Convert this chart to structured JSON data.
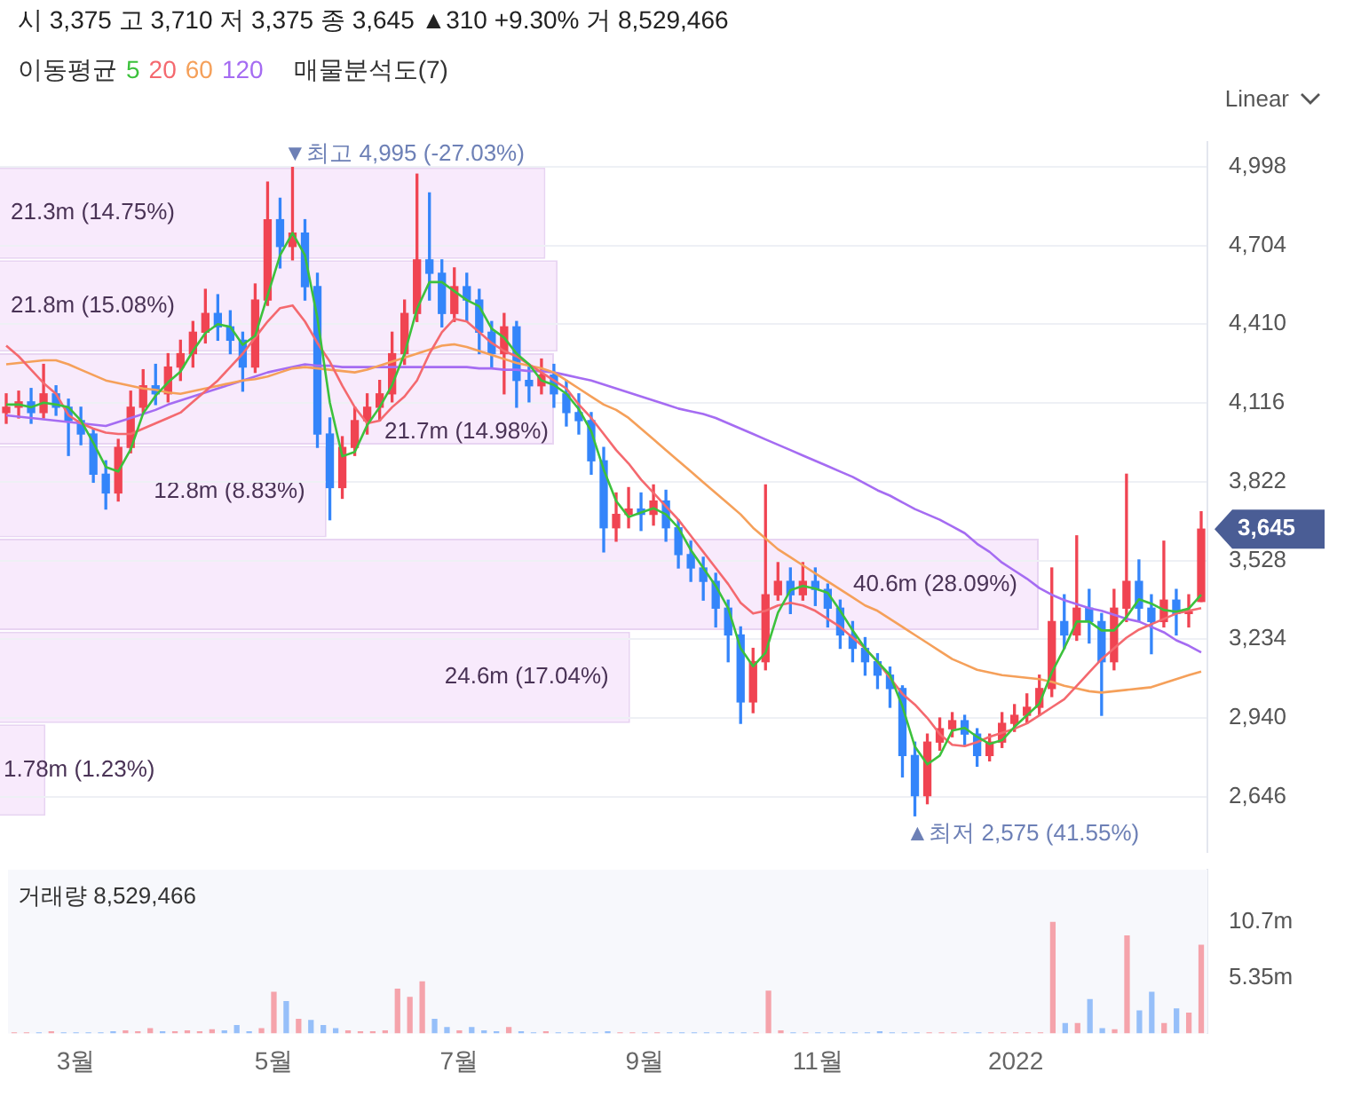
{
  "chart_data": [
    {
      "type": "candlestick",
      "subtitle": "시 3,375 고 3,710 저 3,375 종 3,645 ▲310 +9.30% 거 8,529,466",
      "categories": [
        null,
        null,
        null,
        null,
        null,
        null,
        null,
        null,
        null,
        null,
        null,
        null,
        null,
        null,
        null,
        null,
        null,
        null,
        null,
        null,
        null,
        null,
        null,
        null,
        null,
        null,
        null,
        null,
        null,
        null,
        null,
        null,
        null,
        null,
        null,
        null,
        null,
        null,
        null,
        null,
        null,
        null,
        null,
        null,
        null,
        null,
        null,
        null,
        null,
        null,
        null,
        null,
        null,
        null,
        null,
        null,
        null,
        null,
        null,
        null,
        null,
        null,
        null,
        null,
        null,
        null,
        null,
        null,
        null,
        null,
        null,
        null,
        null,
        null,
        null,
        null,
        null,
        null,
        null,
        null,
        null,
        null,
        null,
        null,
        null,
        null,
        null,
        null,
        null,
        null,
        null,
        null,
        null,
        null,
        null,
        null,
        null
      ],
      "ohlc": [
        [
          4080,
          4150,
          4040,
          4100
        ],
        [
          4100,
          4160,
          4060,
          4120
        ],
        [
          4120,
          4170,
          4040,
          4080
        ],
        [
          4080,
          4260,
          4060,
          4150
        ],
        [
          4150,
          4180,
          4070,
          4100
        ],
        [
          4100,
          4130,
          3920,
          4050
        ],
        [
          4050,
          4100,
          3960,
          4000
        ],
        [
          4000,
          4020,
          3820,
          3850
        ],
        [
          3850,
          3900,
          3720,
          3780
        ],
        [
          3780,
          3980,
          3750,
          3950
        ],
        [
          3950,
          4160,
          3930,
          4100
        ],
        [
          4100,
          4240,
          4080,
          4180
        ],
        [
          4180,
          4260,
          4110,
          4150
        ],
        [
          4150,
          4300,
          4120,
          4250
        ],
        [
          4250,
          4350,
          4200,
          4300
        ],
        [
          4300,
          4420,
          4250,
          4380
        ],
        [
          4380,
          4540,
          4340,
          4450
        ],
        [
          4450,
          4520,
          4350,
          4400
        ],
        [
          4400,
          4460,
          4300,
          4350
        ],
        [
          4350,
          4380,
          4160,
          4250
        ],
        [
          4250,
          4560,
          4230,
          4500
        ],
        [
          4500,
          4940,
          4480,
          4800
        ],
        [
          4800,
          4880,
          4620,
          4700
        ],
        [
          4700,
          4995,
          4650,
          4750
        ],
        [
          4750,
          4800,
          4500,
          4550
        ],
        [
          4550,
          4600,
          3950,
          4000
        ],
        [
          4000,
          4060,
          3680,
          3800
        ],
        [
          3800,
          3990,
          3760,
          3950
        ],
        [
          3950,
          4100,
          3920,
          4050
        ],
        [
          4050,
          4150,
          4000,
          4100
        ],
        [
          4100,
          4200,
          4050,
          4150
        ],
        [
          4150,
          4380,
          4120,
          4300
        ],
        [
          4300,
          4500,
          4260,
          4450
        ],
        [
          4450,
          4970,
          4420,
          4650
        ],
        [
          4650,
          4900,
          4500,
          4600
        ],
        [
          4600,
          4650,
          4400,
          4450
        ],
        [
          4450,
          4620,
          4420,
          4550
        ],
        [
          4550,
          4600,
          4420,
          4500
        ],
        [
          4500,
          4540,
          4300,
          4380
        ],
        [
          4380,
          4420,
          4250,
          4300
        ],
        [
          4300,
          4450,
          4150,
          4400
        ],
        [
          4400,
          4420,
          4100,
          4200
        ],
        [
          4200,
          4260,
          4120,
          4180
        ],
        [
          4180,
          4280,
          4150,
          4220
        ],
        [
          4220,
          4260,
          4100,
          4150
        ],
        [
          4150,
          4200,
          4030,
          4080
        ],
        [
          4080,
          4150,
          4000,
          4050
        ],
        [
          4050,
          4080,
          3850,
          3900
        ],
        [
          3900,
          3950,
          3560,
          3650
        ],
        [
          3650,
          3780,
          3600,
          3700
        ],
        [
          3700,
          3800,
          3650,
          3720
        ],
        [
          3720,
          3780,
          3640,
          3700
        ],
        [
          3700,
          3810,
          3660,
          3750
        ],
        [
          3750,
          3790,
          3600,
          3650
        ],
        [
          3650,
          3680,
          3500,
          3550
        ],
        [
          3550,
          3600,
          3450,
          3500
        ],
        [
          3500,
          3540,
          3380,
          3450
        ],
        [
          3450,
          3480,
          3280,
          3350
        ],
        [
          3350,
          3380,
          3150,
          3250
        ],
        [
          3250,
          3280,
          2920,
          3000
        ],
        [
          3000,
          3200,
          2960,
          3150
        ],
        [
          3150,
          3810,
          3120,
          3400
        ],
        [
          3400,
          3520,
          3380,
          3450
        ],
        [
          3450,
          3500,
          3330,
          3400
        ],
        [
          3400,
          3520,
          3380,
          3450
        ],
        [
          3450,
          3500,
          3360,
          3420
        ],
        [
          3420,
          3440,
          3280,
          3350
        ],
        [
          3350,
          3380,
          3200,
          3250
        ],
        [
          3250,
          3300,
          3150,
          3200
        ],
        [
          3200,
          3240,
          3100,
          3150
        ],
        [
          3150,
          3180,
          3050,
          3100
        ],
        [
          3100,
          3130,
          2980,
          3050
        ],
        [
          3050,
          3060,
          2720,
          2800
        ],
        [
          2800,
          2850,
          2575,
          2650
        ],
        [
          2650,
          2880,
          2620,
          2850
        ],
        [
          2850,
          2940,
          2820,
          2900
        ],
        [
          2900,
          2960,
          2870,
          2930
        ],
        [
          2930,
          2950,
          2840,
          2880
        ],
        [
          2880,
          2900,
          2760,
          2800
        ],
        [
          2800,
          2880,
          2780,
          2850
        ],
        [
          2850,
          2960,
          2830,
          2920
        ],
        [
          2920,
          2990,
          2890,
          2950
        ],
        [
          2950,
          3030,
          2920,
          2980
        ],
        [
          2980,
          3100,
          2950,
          3050
        ],
        [
          3050,
          3500,
          3020,
          3300
        ],
        [
          3300,
          3400,
          3200,
          3250
        ],
        [
          3250,
          3620,
          3230,
          3350
        ],
        [
          3350,
          3420,
          3220,
          3300
        ],
        [
          3300,
          3330,
          2950,
          3150
        ],
        [
          3150,
          3420,
          3120,
          3350
        ],
        [
          3350,
          3850,
          3300,
          3450
        ],
        [
          3450,
          3530,
          3300,
          3350
        ],
        [
          3350,
          3400,
          3180,
          3300
        ],
        [
          3300,
          3600,
          3280,
          3380
        ],
        [
          3380,
          3420,
          3250,
          3330
        ],
        [
          3330,
          3400,
          3280,
          3335
        ],
        [
          3375,
          3710,
          3375,
          3645
        ]
      ],
      "colors": [
        "#f04452",
        "#f04452",
        "#3485fa",
        "#f04452",
        "#3485fa",
        "#3485fa",
        "#3485fa",
        "#3485fa",
        "#3485fa",
        "#f04452",
        "#f04452",
        "#f04452",
        "#3485fa",
        "#f04452",
        "#f04452",
        "#f04452",
        "#f04452",
        "#3485fa",
        "#3485fa",
        "#3485fa",
        "#f04452",
        "#f04452",
        "#3485fa",
        "#f04452",
        "#3485fa",
        "#3485fa",
        "#3485fa",
        "#f04452",
        "#f04452",
        "#f04452",
        "#f04452",
        "#f04452",
        "#f04452",
        "#f04452",
        "#3485fa",
        "#3485fa",
        "#f04452",
        "#3485fa",
        "#3485fa",
        "#3485fa",
        "#f04452",
        "#3485fa",
        "#3485fa",
        "#f04452",
        "#3485fa",
        "#3485fa",
        "#3485fa",
        "#3485fa",
        "#3485fa",
        "#f04452",
        "#f04452",
        "#3485fa",
        "#f04452",
        "#3485fa",
        "#3485fa",
        "#3485fa",
        "#3485fa",
        "#3485fa",
        "#3485fa",
        "#3485fa",
        "#f04452",
        "#f04452",
        "#f04452",
        "#3485fa",
        "#f04452",
        "#3485fa",
        "#3485fa",
        "#3485fa",
        "#3485fa",
        "#3485fa",
        "#3485fa",
        "#3485fa",
        "#3485fa",
        "#3485fa",
        "#f04452",
        "#f04452",
        "#f04452",
        "#3485fa",
        "#3485fa",
        "#f04452",
        "#f04452",
        "#f04452",
        "#f04452",
        "#f04452",
        "#f04452",
        "#3485fa",
        "#f04452",
        "#3485fa",
        "#3485fa",
        "#f04452",
        "#f04452",
        "#3485fa",
        "#3485fa",
        "#f04452",
        "#3485fa",
        "#f04452",
        "#f04452"
      ],
      "series": [
        {
          "type": "line",
          "name": "5",
          "color": "#3cc13c",
          "values": [
            4110,
            4110,
            4100,
            4117,
            4110,
            4100,
            4050,
            3967,
            3877,
            3860,
            3943,
            4077,
            4143,
            4193,
            4233,
            4310,
            4377,
            4410,
            4400,
            4333,
            4367,
            4517,
            4667,
            4750,
            4667,
            4433,
            4117,
            3917,
            3933,
            4033,
            4100,
            4183,
            4300,
            4467,
            4567,
            4567,
            4533,
            4500,
            4477,
            4393,
            4360,
            4300,
            4260,
            4200,
            4183,
            4150,
            4093,
            4010,
            3867,
            3750,
            3690,
            3707,
            3723,
            3700,
            3650,
            3567,
            3500,
            3433,
            3350,
            3200,
            3133,
            3183,
            3333,
            3417,
            3433,
            3423,
            3407,
            3340,
            3267,
            3200,
            3150,
            3100,
            2983,
            2833,
            2767,
            2800,
            2893,
            2903,
            2870,
            2843,
            2857,
            2907,
            2950,
            2993,
            3110,
            3200,
            3300,
            3300,
            3267,
            3267,
            3317,
            3383,
            3367,
            3343,
            3337,
            3348,
            3400
          ]
        },
        {
          "type": "line",
          "name": "20",
          "color": "#f4696f",
          "values": [
            4330,
            4290,
            4240,
            4190,
            4150,
            4070,
            4040,
            4020,
            4005,
            4000,
            4000,
            4020,
            4040,
            4060,
            4080,
            4120,
            4160,
            4200,
            4250,
            4300,
            4360,
            4420,
            4470,
            4480,
            4420,
            4340,
            4270,
            4180,
            4100,
            4040,
            4050,
            4100,
            4140,
            4200,
            4300,
            4380,
            4430,
            4420,
            4380,
            4340,
            4310,
            4290,
            4260,
            4230,
            4200,
            4170,
            4110,
            4060,
            4000,
            3940,
            3890,
            3830,
            3780,
            3730,
            3680,
            3620,
            3560,
            3500,
            3440,
            3370,
            3330,
            3340,
            3360,
            3370,
            3360,
            3340,
            3310,
            3280,
            3240,
            3200,
            3150,
            3090,
            3030,
            2990,
            2940,
            2880,
            2840,
            2835,
            2850,
            2870,
            2885,
            2900,
            2920,
            2950,
            2980,
            3010,
            3060,
            3110,
            3160,
            3200,
            3240,
            3270,
            3290,
            3310,
            3330,
            3340,
            3350
          ]
        },
        {
          "type": "line",
          "name": "60",
          "color": "#f5a05a",
          "values": [
            4260,
            4265,
            4270,
            4275,
            4275,
            4260,
            4240,
            4220,
            4200,
            4190,
            4180,
            4170,
            4165,
            4155,
            4150,
            4160,
            4170,
            4180,
            4190,
            4200,
            4205,
            4215,
            4230,
            4245,
            4250,
            4245,
            4240,
            4235,
            4230,
            4240,
            4255,
            4270,
            4285,
            4300,
            4315,
            4330,
            4335,
            4325,
            4310,
            4295,
            4280,
            4265,
            4255,
            4245,
            4230,
            4200,
            4170,
            4140,
            4110,
            4090,
            4060,
            4020,
            3980,
            3940,
            3900,
            3860,
            3820,
            3780,
            3740,
            3700,
            3650,
            3610,
            3570,
            3540,
            3510,
            3480,
            3450,
            3420,
            3390,
            3360,
            3340,
            3310,
            3280,
            3250,
            3220,
            3190,
            3160,
            3140,
            3120,
            3110,
            3100,
            3095,
            3090,
            3085,
            3075,
            3060,
            3050,
            3040,
            3035,
            3040,
            3045,
            3050,
            3055,
            3070,
            3085,
            3100,
            3113
          ]
        },
        {
          "type": "line",
          "name": "120",
          "color": "#a56cf2",
          "values": [
            4070,
            4065,
            4060,
            4055,
            4050,
            4045,
            4040,
            4035,
            4030,
            4045,
            4060,
            4075,
            4090,
            4110,
            4125,
            4140,
            4155,
            4170,
            4185,
            4200,
            4215,
            4230,
            4240,
            4250,
            4260,
            4255,
            4255,
            4250,
            4250,
            4250,
            4250,
            4250,
            4250,
            4250,
            4250,
            4250,
            4250,
            4250,
            4245,
            4245,
            4240,
            4240,
            4235,
            4235,
            4230,
            4220,
            4210,
            4200,
            4185,
            4170,
            4155,
            4140,
            4125,
            4110,
            4095,
            4085,
            4075,
            4060,
            4040,
            4020,
            4000,
            3980,
            3960,
            3940,
            3920,
            3900,
            3880,
            3860,
            3840,
            3815,
            3790,
            3770,
            3745,
            3720,
            3700,
            3680,
            3655,
            3630,
            3590,
            3560,
            3520,
            3490,
            3460,
            3425,
            3400,
            3380,
            3365,
            3350,
            3340,
            3325,
            3310,
            3300,
            3280,
            3260,
            3230,
            3210,
            3185
          ]
        }
      ],
      "ylim": [
        2440,
        5090
      ],
      "yticks": [
        {
          "value": 2646,
          "label": "2,646"
        },
        {
          "value": 2940,
          "label": "2,940"
        },
        {
          "value": 3234,
          "label": "3,234"
        },
        {
          "value": 3528,
          "label": "3,528"
        },
        {
          "value": 3822,
          "label": "3,822"
        },
        {
          "value": 4116,
          "label": "4,116"
        },
        {
          "value": 4410,
          "label": "4,410"
        },
        {
          "value": 4704,
          "label": "4,704"
        },
        {
          "value": 4998,
          "label": "4,998"
        }
      ],
      "grid": "y",
      "legend": "top left",
      "legend_title": "이동평균",
      "marker": "none",
      "tick_labels": "y",
      "annotations": [
        "▼최고 4,995 (-27.03%)",
        "▲최저 2,575 (41.55%)",
        "3,645",
        "매물분석도(7)",
        "Linear"
      ]
    },
    {
      "type": "bar",
      "title": "거래량 8,529,466",
      "categories": [
        null,
        null,
        null,
        null,
        null,
        "3월",
        null,
        null,
        null,
        null,
        null,
        null,
        null,
        null,
        null,
        null,
        null,
        null,
        null,
        null,
        null,
        "5월",
        null,
        null,
        null,
        null,
        null,
        null,
        null,
        null,
        null,
        null,
        null,
        null,
        null,
        null,
        "7월",
        null,
        null,
        null,
        null,
        null,
        null,
        null,
        null,
        null,
        null,
        null,
        null,
        null,
        null,
        "9월",
        null,
        null,
        null,
        null,
        null,
        null,
        null,
        null,
        null,
        null,
        null,
        null,
        null,
        "11월",
        null,
        null,
        null,
        null,
        null,
        null,
        null,
        null,
        null,
        null,
        null,
        null,
        null,
        null,
        null,
        "2022",
        null,
        null,
        null,
        null,
        null,
        null,
        null,
        null,
        null,
        null,
        null,
        null,
        null,
        null,
        null
      ],
      "values": [
        0.1,
        0.1,
        0.1,
        0.2,
        0.1,
        0.1,
        0.1,
        0.1,
        0.2,
        0.3,
        0.2,
        0.5,
        0.2,
        0.2,
        0.3,
        0.2,
        0.4,
        0.3,
        0.8,
        0.2,
        0.5,
        4.0,
        3.1,
        1.4,
        1.3,
        0.8,
        0.5,
        0.3,
        0.2,
        0.2,
        0.3,
        4.3,
        3.5,
        5.0,
        1.4,
        0.6,
        0.3,
        0.6,
        0.3,
        0.2,
        0.6,
        0.2,
        0.1,
        0.2,
        0.1,
        0.1,
        0.1,
        0.1,
        0.2,
        0.1,
        0.1,
        0.1,
        0.1,
        0.1,
        0.1,
        0.1,
        0.1,
        0.1,
        0.1,
        0.1,
        0.1,
        4.1,
        0.3,
        0.1,
        0.1,
        0.1,
        0.1,
        0.1,
        0.1,
        0.1,
        0.2,
        0.1,
        0.1,
        0.1,
        0.1,
        0.1,
        0.1,
        0.1,
        0.1,
        0.1,
        0.1,
        0.1,
        0.1,
        0.1,
        10.7,
        1.0,
        1.0,
        3.3,
        0.5,
        0.4,
        9.4,
        2.2,
        4.0,
        1.0,
        2.4,
        2.0,
        8.5
      ],
      "colors": [
        "#f5a3ab",
        "#f5a3ab",
        "#96bff9",
        "#f5a3ab",
        "#96bff9",
        "#96bff9",
        "#96bff9",
        "#96bff9",
        "#96bff9",
        "#f5a3ab",
        "#f5a3ab",
        "#f5a3ab",
        "#96bff9",
        "#f5a3ab",
        "#f5a3ab",
        "#f5a3ab",
        "#f5a3ab",
        "#96bff9",
        "#96bff9",
        "#96bff9",
        "#f5a3ab",
        "#f5a3ab",
        "#96bff9",
        "#f5a3ab",
        "#96bff9",
        "#96bff9",
        "#96bff9",
        "#f5a3ab",
        "#f5a3ab",
        "#f5a3ab",
        "#f5a3ab",
        "#f5a3ab",
        "#f5a3ab",
        "#f5a3ab",
        "#96bff9",
        "#96bff9",
        "#f5a3ab",
        "#96bff9",
        "#96bff9",
        "#96bff9",
        "#f5a3ab",
        "#96bff9",
        "#96bff9",
        "#f5a3ab",
        "#96bff9",
        "#96bff9",
        "#96bff9",
        "#96bff9",
        "#96bff9",
        "#f5a3ab",
        "#f5a3ab",
        "#96bff9",
        "#f5a3ab",
        "#96bff9",
        "#96bff9",
        "#96bff9",
        "#96bff9",
        "#96bff9",
        "#96bff9",
        "#96bff9",
        "#f5a3ab",
        "#f5a3ab",
        "#f5a3ab",
        "#96bff9",
        "#f5a3ab",
        "#96bff9",
        "#96bff9",
        "#96bff9",
        "#96bff9",
        "#96bff9",
        "#96bff9",
        "#96bff9",
        "#96bff9",
        "#96bff9",
        "#f5a3ab",
        "#f5a3ab",
        "#f5a3ab",
        "#96bff9",
        "#96bff9",
        "#f5a3ab",
        "#f5a3ab",
        "#f5a3ab",
        "#f5a3ab",
        "#f5a3ab",
        "#f5a3ab",
        "#96bff9",
        "#f5a3ab",
        "#96bff9",
        "#96bff9",
        "#f5a3ab",
        "#f5a3ab",
        "#96bff9",
        "#96bff9",
        "#f5a3ab",
        "#96bff9",
        "#f5a3ab",
        "#f5a3ab"
      ],
      "ylim": [
        0,
        15.7
      ],
      "yticks": [
        {
          "value": 5.35,
          "label": "5.35m"
        },
        {
          "value": 10.7,
          "label": "10.7m"
        }
      ]
    },
    {
      "type": "bar",
      "orientation": "horizontal",
      "categories": [
        null,
        null,
        null,
        null,
        null,
        null,
        null
      ],
      "values": [
        14.75,
        15.08,
        14.98,
        8.83,
        28.09,
        17.04,
        1.23
      ],
      "color": "#f8eafc",
      "value_labels": [
        "21.3m (14.75%)",
        "21.8m (15.08%)",
        "21.7m (14.98%)",
        "12.8m (8.83%)",
        "40.6m (28.09%)",
        "24.6m (17.04%)",
        "1.78m (1.23%)"
      ],
      "tick_labels": false
    }
  ]
}
